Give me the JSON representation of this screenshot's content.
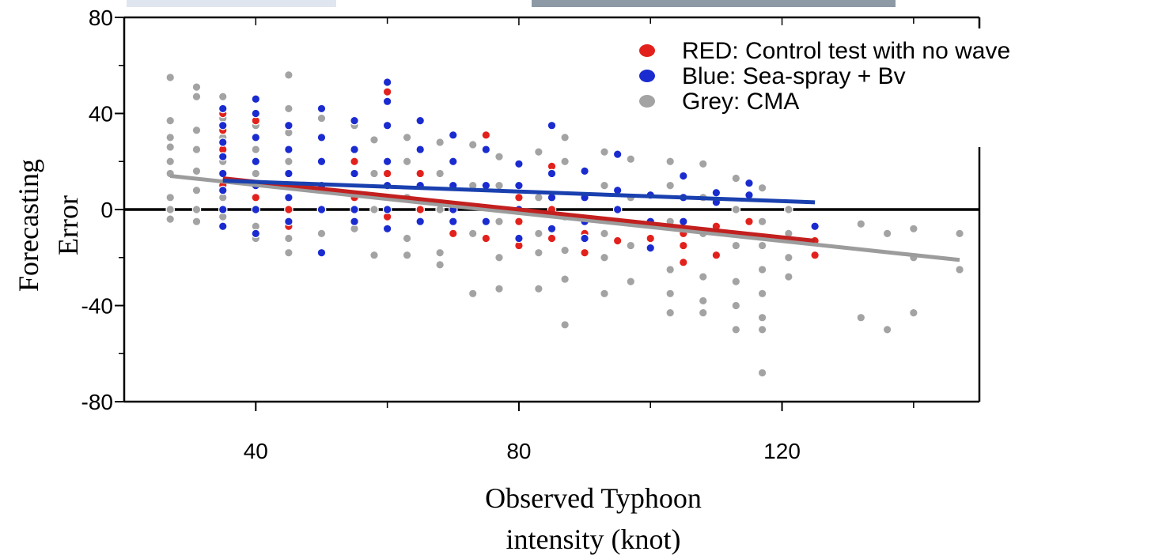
{
  "chart_data": {
    "type": "scatter",
    "xlabel": [
      "Observed Typhoon",
      "intensity (knot)"
    ],
    "ylabel": [
      "Forecasting",
      "Error"
    ],
    "xlim": [
      20,
      150
    ],
    "xticks": [
      40,
      80,
      120
    ],
    "xminorticks": [
      60,
      100,
      140
    ],
    "ylim": [
      -80,
      80
    ],
    "yticks": [
      -80,
      -40,
      0,
      40,
      80
    ],
    "yminorticks": [
      -60,
      -20,
      20,
      60
    ],
    "hline": 0,
    "series": [
      {
        "name": "Grey: CMA",
        "color": "#a3a3a3",
        "trend_color": "#9c9c9c",
        "x": [
          27,
          27,
          27,
          27,
          27,
          27,
          27,
          27,
          27,
          31,
          31,
          31,
          31,
          31,
          31,
          31,
          31,
          35,
          35,
          35,
          35,
          35,
          35,
          40,
          40,
          40,
          40,
          40,
          40,
          45,
          45,
          45,
          45,
          45,
          45,
          45,
          50,
          50,
          50,
          50,
          50,
          50,
          55,
          55,
          55,
          55,
          55,
          58,
          58,
          58,
          58,
          63,
          63,
          63,
          63,
          63,
          68,
          68,
          68,
          68,
          68,
          73,
          73,
          73,
          73,
          77,
          77,
          77,
          77,
          77,
          83,
          83,
          83,
          83,
          83,
          87,
          87,
          87,
          87,
          87,
          87,
          93,
          93,
          93,
          93,
          93,
          97,
          97,
          97,
          97,
          103,
          103,
          103,
          103,
          103,
          103,
          108,
          108,
          108,
          108,
          108,
          108,
          113,
          113,
          113,
          113,
          113,
          113,
          117,
          117,
          117,
          117,
          117,
          117,
          117,
          117,
          121,
          121,
          121,
          121,
          132,
          132,
          136,
          136,
          140,
          140,
          140,
          147,
          147
        ],
        "values": [
          55,
          37,
          30,
          26,
          20,
          15,
          5,
          0,
          -4,
          51,
          47,
          33,
          25,
          16,
          8,
          0,
          -5,
          47,
          38,
          30,
          20,
          5,
          -3,
          40,
          35,
          25,
          15,
          -7,
          -12,
          56,
          42,
          32,
          20,
          10,
          -12,
          -18,
          38,
          30,
          20,
          0,
          -10,
          -18,
          35,
          25,
          15,
          5,
          -8,
          29,
          15,
          0,
          -19,
          30,
          20,
          5,
          -12,
          -19,
          28,
          15,
          0,
          -18,
          -23,
          27,
          10,
          -10,
          -35,
          22,
          10,
          -5,
          -20,
          -33,
          24,
          5,
          -10,
          -18,
          -33,
          30,
          20,
          -3,
          -17,
          -29,
          -48,
          24,
          10,
          -10,
          -20,
          -35,
          21,
          5,
          -15,
          -30,
          20,
          10,
          -5,
          -25,
          -35,
          -43,
          19,
          5,
          -10,
          -28,
          -38,
          -43,
          13,
          0,
          -15,
          -30,
          -40,
          -50,
          9,
          -5,
          -15,
          -25,
          -35,
          -45,
          -50,
          -68,
          0,
          -10,
          -20,
          -28,
          -6,
          -45,
          -10,
          -50,
          -8,
          -20,
          -43,
          -10,
          -25
        ],
        "trend": {
          "x": [
            27,
            147
          ],
          "y": [
            14,
            -21
          ]
        }
      },
      {
        "name": "RED: Control test with no wave",
        "color": "#e3211c",
        "trend_color": "#c2201f",
        "x": [
          35,
          35,
          35,
          35,
          35,
          40,
          40,
          40,
          45,
          45,
          45,
          50,
          50,
          55,
          55,
          60,
          60,
          60,
          60,
          65,
          65,
          70,
          70,
          75,
          75,
          75,
          80,
          80,
          80,
          85,
          85,
          85,
          90,
          90,
          90,
          95,
          95,
          100,
          100,
          105,
          105,
          105,
          110,
          110,
          115,
          125,
          125
        ],
        "values": [
          40,
          33,
          25,
          10,
          0,
          37,
          20,
          5,
          15,
          0,
          -7,
          10,
          -18,
          20,
          5,
          49,
          35,
          15,
          -3,
          15,
          0,
          20,
          -10,
          31,
          10,
          -12,
          5,
          -5,
          -15,
          18,
          0,
          -12,
          5,
          -10,
          -18,
          -5,
          -13,
          -5,
          -12,
          -10,
          -15,
          -22,
          -7,
          -19,
          -5,
          -13,
          -19
        ],
        "trend": {
          "x": [
            35,
            125
          ],
          "y": [
            13,
            -13
          ]
        }
      },
      {
        "name": "Blue: Sea-spray + Bv",
        "color": "#1a2bd0",
        "trend_color": "#1a40b0",
        "x": [
          35,
          35,
          35,
          35,
          35,
          35,
          35,
          35,
          40,
          40,
          40,
          40,
          40,
          40,
          40,
          45,
          45,
          45,
          45,
          45,
          50,
          50,
          50,
          50,
          50,
          50,
          55,
          55,
          55,
          55,
          55,
          60,
          60,
          60,
          60,
          60,
          60,
          60,
          65,
          65,
          65,
          65,
          70,
          70,
          70,
          70,
          70,
          75,
          75,
          75,
          80,
          80,
          80,
          80,
          85,
          85,
          85,
          85,
          90,
          90,
          90,
          90,
          95,
          95,
          95,
          100,
          100,
          100,
          105,
          105,
          105,
          110,
          110,
          115,
          115,
          125
        ],
        "values": [
          42,
          35,
          28,
          22,
          15,
          8,
          0,
          -7,
          46,
          40,
          30,
          20,
          10,
          0,
          -10,
          35,
          25,
          15,
          5,
          -5,
          42,
          30,
          20,
          10,
          0,
          -18,
          37,
          25,
          15,
          0,
          -5,
          53,
          45,
          35,
          20,
          10,
          0,
          -8,
          37,
          25,
          10,
          -5,
          31,
          20,
          10,
          0,
          -5,
          25,
          10,
          -5,
          19,
          10,
          0,
          -12,
          35,
          15,
          5,
          -8,
          16,
          5,
          -5,
          -12,
          23,
          8,
          0,
          6,
          -5,
          -16,
          14,
          5,
          -5,
          7,
          3,
          11,
          6,
          -7
        ],
        "trend": {
          "x": [
            35,
            125
          ],
          "y": [
            12,
            3
          ]
        }
      }
    ]
  }
}
